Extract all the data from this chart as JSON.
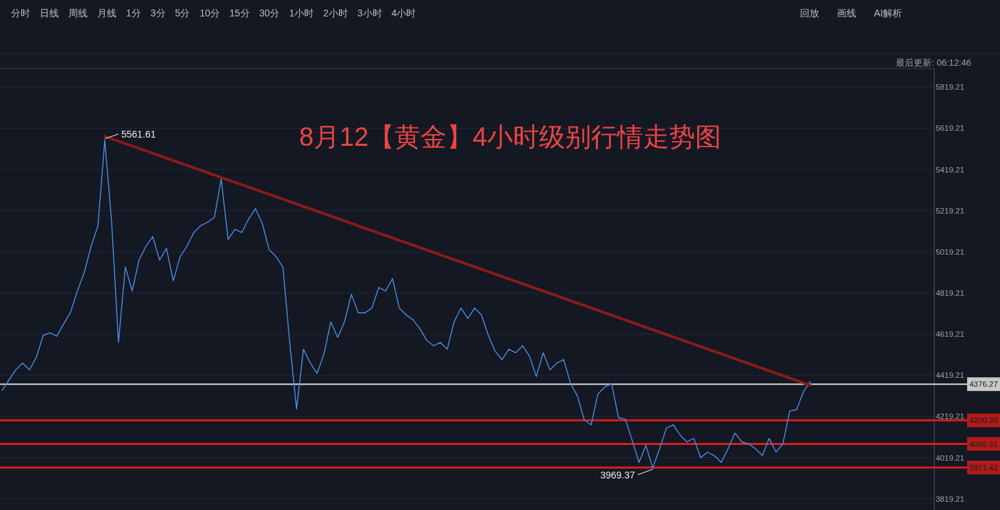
{
  "chart_data": {
    "type": "line",
    "title": "8月12【黄金】4小时级别行情走势图",
    "annotations": [
      "分时",
      "日线",
      "周线",
      "月线",
      "1分",
      "3分",
      "5分",
      "10分",
      "15分",
      "30分",
      "1小时",
      "2小时",
      "3小时",
      "4小时",
      "回放",
      "画线",
      "AI解析",
      "最后更新: 06:12:46",
      "5561.61",
      {
        "text": "3969.37",
        "y": 3969.37
      }
    ],
    "categories": [
      null,
      null,
      null,
      null,
      null,
      null,
      null,
      null,
      null,
      null,
      null,
      null,
      null,
      null,
      null,
      null,
      null,
      null,
      null,
      null,
      null,
      null,
      null,
      null,
      null,
      null,
      null,
      null,
      null,
      null,
      null,
      null,
      null,
      null,
      null,
      null,
      null,
      null,
      null,
      null,
      null,
      null,
      null,
      null,
      null,
      null,
      null,
      null,
      null,
      null,
      null,
      null,
      null,
      null,
      null,
      null,
      null,
      null,
      null,
      null,
      null,
      null,
      null,
      null,
      null,
      null,
      null,
      null,
      null,
      null,
      null,
      null,
      null,
      null,
      null,
      null,
      null,
      null,
      null,
      null,
      null,
      null,
      null,
      null,
      null,
      null,
      null,
      null,
      null,
      null,
      null,
      null,
      null,
      null,
      null,
      null,
      null,
      null,
      null,
      null,
      null,
      null,
      null,
      null,
      null,
      null,
      null,
      null,
      null,
      null,
      null,
      null,
      null,
      null,
      null,
      null,
      null,
      null,
      null
    ],
    "series": [
      {
        "color": "#4a8fe7",
        "values": [
          4346,
          4396,
          4446,
          4479,
          4446,
          4506,
          4613,
          4626,
          4609,
          4669,
          4726,
          4829,
          4919,
          5046,
          5146,
          5561.61,
          5163,
          4579,
          4946,
          4829,
          4979,
          5046,
          5093,
          4979,
          5036,
          4879,
          4996,
          5046,
          5113,
          5146,
          5163,
          5186,
          5373,
          5079,
          5129,
          5113,
          5179,
          5229,
          5156,
          5029,
          4996,
          4946,
          4579,
          4256,
          4546,
          4479,
          4429,
          4523,
          4679,
          4603,
          4679,
          4813,
          4723,
          4723,
          4746,
          4846,
          4829,
          4889,
          4746,
          4713,
          4689,
          4646,
          4589,
          4563,
          4579,
          4546,
          4679,
          4746,
          4696,
          4746,
          4713,
          4613,
          4536,
          4496,
          4546,
          4529,
          4563,
          4513,
          4413,
          4529,
          4446,
          4479,
          4496,
          4379,
          4319,
          4203,
          4179,
          4329,
          4363,
          4379,
          4213,
          4206,
          4103,
          3996,
          4079,
          3969.37,
          4063,
          4163,
          4179,
          4129,
          4096,
          4113,
          4019,
          4046,
          4029,
          3996,
          4063,
          4139,
          4096,
          4086,
          4063,
          4029,
          4113,
          4046,
          4086,
          4246,
          4253,
          4339,
          4389
        ]
      },
      {
        "type": "line",
        "color": "#8b1a1a",
        "values": [
          null,
          null,
          null,
          null,
          null,
          null,
          null,
          null,
          null,
          null,
          null,
          null,
          null,
          null,
          null,
          5580,
          null,
          null,
          null,
          null,
          null,
          null,
          null,
          null,
          null,
          null,
          null,
          null,
          null,
          null,
          null,
          null,
          null,
          null,
          null,
          null,
          null,
          null,
          null,
          null,
          null,
          null,
          null,
          null,
          null,
          null,
          null,
          null,
          null,
          null,
          null,
          null,
          null,
          null,
          null,
          null,
          null,
          null,
          null,
          null,
          null,
          null,
          null,
          null,
          null,
          null,
          null,
          null,
          null,
          null,
          null,
          null,
          null,
          null,
          null,
          null,
          null,
          null,
          null,
          null,
          null,
          null,
          null,
          null,
          null,
          null,
          null,
          null,
          null,
          null,
          null,
          null,
          null,
          null,
          null,
          null,
          null,
          null,
          null,
          null,
          null,
          null,
          null,
          null,
          null,
          null,
          null,
          null,
          null,
          null,
          null,
          null,
          null,
          null,
          null,
          null,
          null,
          null,
          4371
        ]
      }
    ],
    "ylim": [
      3765,
      5910
    ],
    "yticks": [
      3819.21,
      4019.21,
      4219.21,
      4419.21,
      4619.21,
      4819.21,
      5019.21,
      5219.21,
      5419.21,
      5619.21,
      5819.21
    ],
    "grid": "y",
    "ref_lines": [
      {
        "axis": "y",
        "value": 4376.27,
        "label": "4376.27",
        "color": "#d9d9d9"
      },
      {
        "axis": "y",
        "value": 4200.39,
        "label": "4200.39",
        "color": "#d81e1e"
      },
      {
        "axis": "y",
        "value": 4085.91,
        "label": "4085.91",
        "color": "#d81e1e"
      },
      {
        "axis": "y",
        "value": 3971.42,
        "label": "3971.42",
        "color": "#d81e1e"
      }
    ]
  }
}
